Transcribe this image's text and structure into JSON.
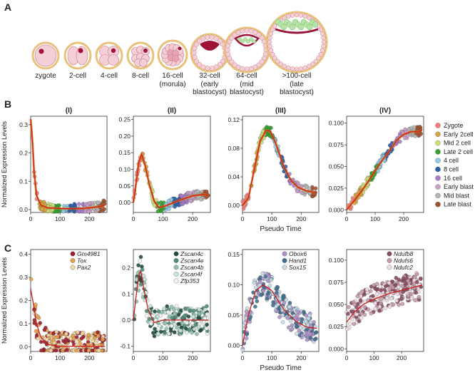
{
  "panel_labels": {
    "a": "A",
    "b": "B",
    "c": "C"
  },
  "embryo_stages": [
    {
      "label": "zygote",
      "sub": []
    },
    {
      "label": "2-cell",
      "sub": []
    },
    {
      "label": "4-cell",
      "sub": []
    },
    {
      "label": "8-cell",
      "sub": []
    },
    {
      "label": "16-cell",
      "sub": [
        "(morula)"
      ]
    },
    {
      "label": "32-cell",
      "sub": [
        "(early",
        "blastocyst)"
      ]
    },
    {
      "label": "64-cell",
      "sub": [
        "(mid",
        "blastocyst)"
      ]
    },
    {
      "label": ">100-cell",
      "sub": [
        "(late",
        "blastocyst)"
      ]
    }
  ],
  "colors": {
    "zona": "#e9c27a",
    "cell": "#f5cfd6",
    "cell_edge": "#c77a8a",
    "pronucleus": "#9e1238",
    "icm": "#9e1238",
    "late_icm": "#b6e3a6",
    "trend_line": "#e07a1a",
    "trend_dark": "#c81e1e"
  },
  "chart_data": [
    {
      "id": "B-I",
      "type": "scatter",
      "title": "(I)",
      "ylabel": "Normalized Expression Levels",
      "xlabel": "",
      "xlim": [
        0,
        260
      ],
      "ylim": [
        -0.01,
        0.33
      ],
      "xticks": [
        0,
        100,
        200
      ],
      "yticks": [
        0.0,
        0.1,
        0.2,
        0.3
      ],
      "ytick_labels": [
        "0.0",
        "0.1",
        "0.2",
        "0.3"
      ],
      "trend": [
        [
          0,
          0.32
        ],
        [
          5,
          0.26
        ],
        [
          12,
          0.13
        ],
        [
          20,
          0.05
        ],
        [
          35,
          0.015
        ],
        [
          60,
          0.006
        ],
        [
          100,
          0.004
        ],
        [
          150,
          0.003
        ],
        [
          200,
          0.006
        ],
        [
          240,
          0.012
        ],
        [
          255,
          0.018
        ]
      ]
    },
    {
      "id": "B-II",
      "type": "scatter",
      "title": "(II)",
      "ylabel": "",
      "xlabel": "",
      "xlim": [
        0,
        260
      ],
      "ylim": [
        -0.03,
        0.26
      ],
      "xticks": [
        0,
        100,
        200
      ],
      "yticks": [
        0.0,
        0.05,
        0.1,
        0.15,
        0.2,
        0.25
      ],
      "ytick_labels": [
        "0.00",
        "0.05",
        "0.10",
        "0.15",
        "0.20",
        "0.25"
      ],
      "trend": [
        [
          0,
          0.0
        ],
        [
          8,
          0.05
        ],
        [
          18,
          0.12
        ],
        [
          28,
          0.145
        ],
        [
          40,
          0.11
        ],
        [
          55,
          0.05
        ],
        [
          70,
          0.005
        ],
        [
          85,
          -0.015
        ],
        [
          110,
          -0.01
        ],
        [
          150,
          0.005
        ],
        [
          200,
          0.02
        ],
        [
          240,
          0.025
        ],
        [
          255,
          0.02
        ]
      ]
    },
    {
      "id": "B-III",
      "type": "scatter",
      "title": "(III)",
      "ylabel": "",
      "xlabel": "Pseudo Time",
      "xlim": [
        0,
        260
      ],
      "ylim": [
        -0.01,
        0.125
      ],
      "xticks": [
        0,
        100,
        200
      ],
      "yticks": [
        0.0,
        0.04,
        0.08,
        0.12
      ],
      "ytick_labels": [
        "0.00",
        "0.04",
        "0.08",
        "0.12"
      ],
      "trend": [
        [
          0,
          0.0
        ],
        [
          20,
          0.01
        ],
        [
          40,
          0.05
        ],
        [
          60,
          0.09
        ],
        [
          80,
          0.105
        ],
        [
          95,
          0.104
        ],
        [
          115,
          0.085
        ],
        [
          140,
          0.055
        ],
        [
          165,
          0.035
        ],
        [
          190,
          0.025
        ],
        [
          220,
          0.02
        ],
        [
          250,
          0.018
        ]
      ]
    },
    {
      "id": "B-IV",
      "type": "scatter",
      "title": "(IV)",
      "ylabel": "",
      "xlabel": "",
      "xlim": [
        0,
        270
      ],
      "ylim": [
        -0.003,
        0.108
      ],
      "xticks": [
        0,
        100,
        200
      ],
      "yticks": [
        0.0,
        0.025,
        0.05,
        0.075,
        0.1
      ],
      "ytick_labels": [
        "0.000",
        "0.025",
        "0.050",
        "0.075",
        "0.100"
      ],
      "trend": [
        [
          0,
          0.0
        ],
        [
          30,
          0.012
        ],
        [
          60,
          0.025
        ],
        [
          90,
          0.04
        ],
        [
          120,
          0.055
        ],
        [
          150,
          0.068
        ],
        [
          175,
          0.08
        ],
        [
          200,
          0.087
        ],
        [
          225,
          0.09
        ],
        [
          250,
          0.09
        ],
        [
          265,
          0.092
        ]
      ]
    },
    {
      "id": "C-1",
      "type": "scatter",
      "title": "",
      "ylabel": "Normalized Expression Levels",
      "xlabel": "",
      "xlim": [
        0,
        260
      ],
      "ylim": [
        -0.02,
        0.42
      ],
      "xticks": [
        0,
        100,
        200
      ],
      "yticks": [
        0.0,
        0.1,
        0.2,
        0.3,
        0.4
      ],
      "ytick_labels": [
        "0.0",
        "0.1",
        "0.2",
        "0.3",
        "0.4"
      ],
      "trend": [
        [
          0,
          0.25
        ],
        [
          10,
          0.18
        ],
        [
          20,
          0.1
        ],
        [
          35,
          0.04
        ],
        [
          60,
          0.01
        ],
        [
          100,
          0.003
        ],
        [
          200,
          0.002
        ],
        [
          255,
          0.002
        ]
      ]
    },
    {
      "id": "C-2",
      "type": "scatter",
      "title": "",
      "ylabel": "",
      "xlabel": "",
      "xlim": [
        0,
        260
      ],
      "ylim": [
        -0.12,
        0.27
      ],
      "xticks": [
        0,
        100,
        200
      ],
      "yticks": [
        -0.1,
        0.0,
        0.1,
        0.2
      ],
      "ytick_labels": [
        "-0.1",
        "0.0",
        "0.1",
        "0.2"
      ],
      "trend": [
        [
          0,
          0.0
        ],
        [
          8,
          0.08
        ],
        [
          18,
          0.17
        ],
        [
          25,
          0.19
        ],
        [
          35,
          0.12
        ],
        [
          50,
          0.04
        ],
        [
          70,
          -0.01
        ],
        [
          100,
          0.0
        ],
        [
          200,
          0.0
        ],
        [
          255,
          0.0
        ]
      ]
    },
    {
      "id": "C-3",
      "type": "scatter",
      "title": "",
      "ylabel": "",
      "xlabel": "Pseudo Time",
      "xlim": [
        0,
        260
      ],
      "ylim": [
        -0.01,
        0.158
      ],
      "xticks": [
        0,
        100,
        200
      ],
      "yticks": [
        0.0,
        0.05,
        0.1,
        0.15
      ],
      "ytick_labels": [
        "0.00",
        "0.05",
        "0.10",
        "0.15"
      ],
      "trend": [
        [
          0,
          0.0
        ],
        [
          20,
          0.05
        ],
        [
          45,
          0.09
        ],
        [
          70,
          0.1
        ],
        [
          100,
          0.09
        ],
        [
          140,
          0.06
        ],
        [
          180,
          0.04
        ],
        [
          220,
          0.03
        ],
        [
          255,
          0.028
        ]
      ]
    },
    {
      "id": "C-4",
      "type": "scatter",
      "title": "",
      "ylabel": "",
      "xlabel": "",
      "xlim": [
        0,
        280
      ],
      "ylim": [
        -0.003,
        0.112
      ],
      "xticks": [
        0,
        100,
        200
      ],
      "yticks": [
        0.0,
        0.025,
        0.05,
        0.075,
        0.1
      ],
      "ytick_labels": [
        "0.000",
        "0.025",
        "0.050",
        "0.075",
        "0.100"
      ],
      "trend": [
        [
          0,
          0.03
        ],
        [
          30,
          0.042
        ],
        [
          60,
          0.05
        ],
        [
          100,
          0.056
        ],
        [
          150,
          0.062
        ],
        [
          200,
          0.066
        ],
        [
          250,
          0.07
        ],
        [
          275,
          0.072
        ]
      ]
    }
  ],
  "legend_B": [
    {
      "name": "Zygote",
      "color": "#f08080"
    },
    {
      "name": "Early 2cell",
      "color": "#d9a441"
    },
    {
      "name": "Mid 2 cell",
      "color": "#c8e07a"
    },
    {
      "name": "Late 2 cell",
      "color": "#33a02c"
    },
    {
      "name": "4 cell",
      "color": "#8ecae6"
    },
    {
      "name": "8 cell",
      "color": "#2a5da8"
    },
    {
      "name": "16 cell",
      "color": "#a77bc8"
    },
    {
      "name": "Early blast",
      "color": "#c9a0c8"
    },
    {
      "name": "Mid blast",
      "color": "#b5b5b5"
    },
    {
      "name": "Late blast",
      "color": "#a0522d"
    }
  ],
  "legends_C": [
    [
      {
        "name": "Gm4981",
        "color": "#9e1c2c"
      },
      {
        "name": "Tox",
        "color": "#e8a04a"
      },
      {
        "name": "Pax2",
        "color": "#f3d9a8"
      }
    ],
    [
      {
        "name": "Zscan4c",
        "color": "#1f4d3a"
      },
      {
        "name": "Zscan4e",
        "color": "#4f8a74"
      },
      {
        "name": "Zscan4b",
        "color": "#8cc2ad"
      },
      {
        "name": "Zscan4f",
        "color": "#c9e6d8"
      },
      {
        "name": "Zfp353",
        "color": "#f0f7f2"
      }
    ],
    [
      {
        "name": "Obox6",
        "color": "#b090c8"
      },
      {
        "name": "Hand1",
        "color": "#3f6f8f"
      },
      {
        "name": "Sox15",
        "color": "#c7dbe8"
      }
    ],
    [
      {
        "name": "Ndufb8",
        "color": "#8a4a62"
      },
      {
        "name": "Ndufs6",
        "color": "#c99aad"
      },
      {
        "name": "Ndufc2",
        "color": "#f0dde4"
      }
    ]
  ]
}
